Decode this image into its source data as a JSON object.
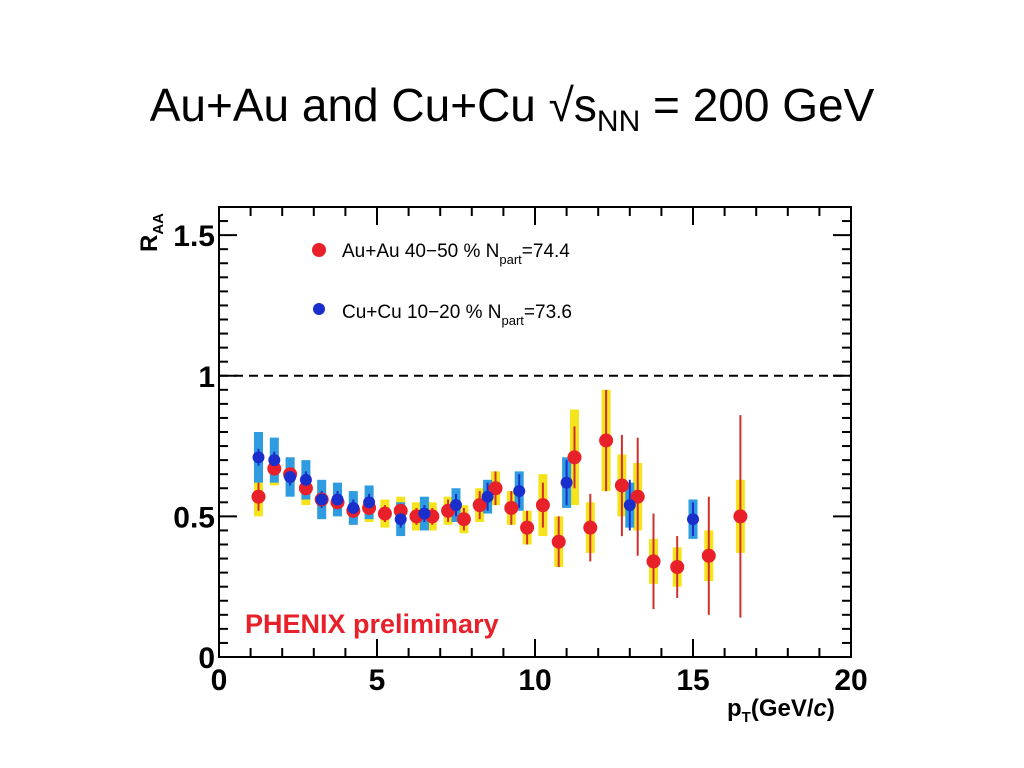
{
  "title": {
    "main": "Au+Au and Cu+Cu √s",
    "sub": "NN",
    "tail": " = 200 GeV"
  },
  "chart_data": {
    "type": "scatter",
    "xlabel_main": "p",
    "xlabel_sub": "T",
    "xlabel_tail": "(GeV/",
    "xlabel_italic": "c",
    "xlabel_close": ")",
    "ylabel_main": "R",
    "ylabel_sub": "AA",
    "xlim": [
      0,
      20
    ],
    "ylim": [
      0,
      1.6
    ],
    "xticks": [
      "0",
      "5",
      "10",
      "15",
      "20"
    ],
    "yticks": [
      "0",
      "0.5",
      "1",
      "1.5"
    ],
    "reference_line": {
      "y": 1.0,
      "style": "dashed"
    },
    "annotation": {
      "text": "PHENIX preliminary",
      "color": "#e8202a"
    },
    "legend_placement": "top-left",
    "series": [
      {
        "legend_main": "Au+Au 40−50 % N",
        "legend_sub": "part",
        "legend_tail": "=74.4",
        "marker_color": "#e8202a",
        "sys_color": "#f5e41c",
        "stat_color": "#d0302a",
        "points": [
          {
            "x": 1.25,
            "y": 0.57,
            "stat": 0.05,
            "sys": 0.07
          },
          {
            "x": 1.75,
            "y": 0.67,
            "stat": 0.04,
            "sys": 0.06
          },
          {
            "x": 2.25,
            "y": 0.65,
            "stat": 0.03,
            "sys": 0.06
          },
          {
            "x": 2.75,
            "y": 0.6,
            "stat": 0.03,
            "sys": 0.06
          },
          {
            "x": 3.25,
            "y": 0.56,
            "stat": 0.03,
            "sys": 0.05
          },
          {
            "x": 3.75,
            "y": 0.55,
            "stat": 0.03,
            "sys": 0.05
          },
          {
            "x": 4.25,
            "y": 0.52,
            "stat": 0.03,
            "sys": 0.05
          },
          {
            "x": 4.75,
            "y": 0.53,
            "stat": 0.03,
            "sys": 0.05
          },
          {
            "x": 5.25,
            "y": 0.51,
            "stat": 0.03,
            "sys": 0.05
          },
          {
            "x": 5.75,
            "y": 0.52,
            "stat": 0.03,
            "sys": 0.05
          },
          {
            "x": 6.25,
            "y": 0.5,
            "stat": 0.03,
            "sys": 0.05
          },
          {
            "x": 6.75,
            "y": 0.5,
            "stat": 0.03,
            "sys": 0.05
          },
          {
            "x": 7.25,
            "y": 0.52,
            "stat": 0.04,
            "sys": 0.05
          },
          {
            "x": 7.75,
            "y": 0.49,
            "stat": 0.04,
            "sys": 0.05
          },
          {
            "x": 8.25,
            "y": 0.54,
            "stat": 0.05,
            "sys": 0.06
          },
          {
            "x": 8.75,
            "y": 0.6,
            "stat": 0.06,
            "sys": 0.06
          },
          {
            "x": 9.25,
            "y": 0.53,
            "stat": 0.06,
            "sys": 0.06
          },
          {
            "x": 9.75,
            "y": 0.46,
            "stat": 0.06,
            "sys": 0.06
          },
          {
            "x": 10.25,
            "y": 0.54,
            "stat": 0.08,
            "sys": 0.11
          },
          {
            "x": 10.75,
            "y": 0.41,
            "stat": 0.09,
            "sys": 0.09
          },
          {
            "x": 11.25,
            "y": 0.71,
            "stat": 0.11,
            "sys": 0.17
          },
          {
            "x": 11.75,
            "y": 0.46,
            "stat": 0.12,
            "sys": 0.09
          },
          {
            "x": 12.25,
            "y": 0.77,
            "stat": 0.18,
            "sys": 0.18
          },
          {
            "x": 12.75,
            "y": 0.61,
            "stat": 0.18,
            "sys": 0.11
          },
          {
            "x": 13.25,
            "y": 0.57,
            "stat": 0.21,
            "sys": 0.12
          },
          {
            "x": 13.75,
            "y": 0.34,
            "stat": 0.17,
            "sys": 0.08
          },
          {
            "x": 14.5,
            "y": 0.32,
            "stat": 0.11,
            "sys": 0.07
          },
          {
            "x": 15.5,
            "y": 0.36,
            "stat": 0.21,
            "sys": 0.09
          },
          {
            "x": 16.5,
            "y": 0.5,
            "stat": 0.36,
            "sys": 0.13
          }
        ]
      },
      {
        "legend_main": "Cu+Cu 10−20 % N",
        "legend_sub": "part",
        "legend_tail": "=73.6",
        "marker_color": "#1a2ecc",
        "sys_color": "#2f9be0",
        "stat_color": "#1a2ecc",
        "points": [
          {
            "x": 1.25,
            "y": 0.71,
            "stat": 0.03,
            "sys": 0.09
          },
          {
            "x": 1.75,
            "y": 0.7,
            "stat": 0.03,
            "sys": 0.08
          },
          {
            "x": 2.25,
            "y": 0.64,
            "stat": 0.03,
            "sys": 0.07
          },
          {
            "x": 2.75,
            "y": 0.63,
            "stat": 0.03,
            "sys": 0.07
          },
          {
            "x": 3.25,
            "y": 0.56,
            "stat": 0.03,
            "sys": 0.07
          },
          {
            "x": 3.75,
            "y": 0.56,
            "stat": 0.03,
            "sys": 0.06
          },
          {
            "x": 4.25,
            "y": 0.53,
            "stat": 0.03,
            "sys": 0.06
          },
          {
            "x": 4.75,
            "y": 0.55,
            "stat": 0.03,
            "sys": 0.06
          },
          {
            "x": 5.75,
            "y": 0.49,
            "stat": 0.03,
            "sys": 0.06
          },
          {
            "x": 6.5,
            "y": 0.51,
            "stat": 0.03,
            "sys": 0.06
          },
          {
            "x": 7.5,
            "y": 0.54,
            "stat": 0.04,
            "sys": 0.06
          },
          {
            "x": 8.5,
            "y": 0.57,
            "stat": 0.05,
            "sys": 0.06
          },
          {
            "x": 9.5,
            "y": 0.59,
            "stat": 0.06,
            "sys": 0.07
          },
          {
            "x": 11.0,
            "y": 0.62,
            "stat": 0.08,
            "sys": 0.09
          },
          {
            "x": 13.0,
            "y": 0.54,
            "stat": 0.09,
            "sys": 0.08
          },
          {
            "x": 15.0,
            "y": 0.49,
            "stat": 0.06,
            "sys": 0.07
          }
        ]
      }
    ]
  }
}
